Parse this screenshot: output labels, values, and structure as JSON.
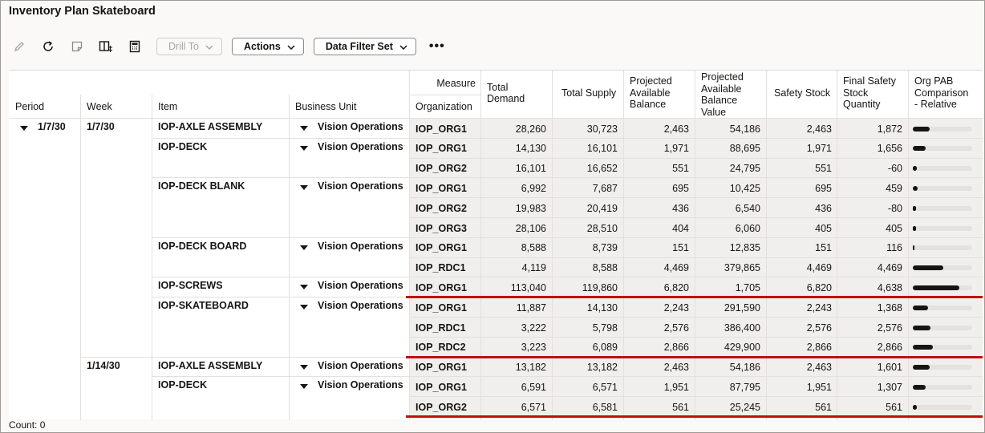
{
  "title": "Inventory Plan Skateboard",
  "toolbar": {
    "edit_icon": "pencil-icon",
    "refresh_icon": "refresh-icon",
    "note_icon": "note-icon",
    "layout_icon": "layout-icon",
    "calc_icon": "calculator-icon",
    "drill_to": "Drill To",
    "actions": "Actions",
    "data_filter_set": "Data Filter Set",
    "more": "•••"
  },
  "headers": {
    "period": "Period",
    "week": "Week",
    "item": "Item",
    "business_unit": "Business Unit",
    "measure": "Measure",
    "organization": "Organization",
    "total_demand": [
      "Total",
      "Demand"
    ],
    "total_supply": [
      "Total Supply"
    ],
    "pab": [
      "Projected",
      "Available",
      "Balance"
    ],
    "pab_value": [
      "Projected",
      "Available",
      "Balance",
      "Value"
    ],
    "safety_stock": [
      "Safety Stock"
    ],
    "final_ss": [
      "Final Safety",
      "Stock",
      "Quantity"
    ],
    "org_pab": [
      "Org PAB",
      "Comparison",
      "- Relative"
    ]
  },
  "period": "1/7/30",
  "weeks": [
    "1/7/30",
    "1/14/30"
  ],
  "items": [
    {
      "item": "IOP-AXLE ASSEMBLY",
      "bu": "Vision Operations"
    },
    {
      "item": "IOP-DECK",
      "bu": "Vision Operations"
    },
    {
      "item": "IOP-DECK BLANK",
      "bu": "Vision Operations"
    },
    {
      "item": "IOP-DECK BOARD",
      "bu": "Vision Operations"
    },
    {
      "item": "IOP-SCREWS",
      "bu": "Vision Operations"
    },
    {
      "item": "IOP-SKATEBOARD",
      "bu": "Vision Operations"
    },
    {
      "item": "IOP-AXLE ASSEMBLY",
      "bu": "Vision Operations"
    },
    {
      "item": "IOP-DECK",
      "bu": "Vision Operations"
    }
  ],
  "rows": [
    {
      "org": "IOP_ORG1",
      "td": "28,260",
      "ts": "30,723",
      "pab": "2,463",
      "pabv": "54,186",
      "ss": "2,463",
      "fss": "1,872",
      "rel": 0.28
    },
    {
      "org": "IOP_ORG1",
      "td": "14,130",
      "ts": "16,101",
      "pab": "1,971",
      "pabv": "88,695",
      "ss": "1,971",
      "fss": "1,656",
      "rel": 0.22
    },
    {
      "org": "IOP_ORG2",
      "td": "16,101",
      "ts": "16,652",
      "pab": "551",
      "pabv": "24,795",
      "ss": "551",
      "fss": "-60",
      "rel": 0.07
    },
    {
      "org": "IOP_ORG1",
      "td": "6,992",
      "ts": "7,687",
      "pab": "695",
      "pabv": "10,425",
      "ss": "695",
      "fss": "459",
      "rel": 0.08
    },
    {
      "org": "IOP_ORG2",
      "td": "19,983",
      "ts": "20,419",
      "pab": "436",
      "pabv": "6,540",
      "ss": "436",
      "fss": "-80",
      "rel": 0.06
    },
    {
      "org": "IOP_ORG3",
      "td": "28,106",
      "ts": "28,510",
      "pab": "404",
      "pabv": "6,060",
      "ss": "405",
      "fss": "405",
      "rel": 0.05
    },
    {
      "org": "IOP_ORG1",
      "td": "8,588",
      "ts": "8,739",
      "pab": "151",
      "pabv": "12,835",
      "ss": "151",
      "fss": "116",
      "rel": 0.02
    },
    {
      "org": "IOP_RDC1",
      "td": "4,119",
      "ts": "8,588",
      "pab": "4,469",
      "pabv": "379,865",
      "ss": "4,469",
      "fss": "4,469",
      "rel": 0.51
    },
    {
      "org": "IOP_ORG1",
      "td": "113,040",
      "ts": "119,860",
      "pab": "6,820",
      "pabv": "1,705",
      "ss": "6,820",
      "fss": "4,638",
      "rel": 0.79
    },
    {
      "org": "IOP_ORG1",
      "td": "11,887",
      "ts": "14,130",
      "pab": "2,243",
      "pabv": "291,590",
      "ss": "2,243",
      "fss": "1,368",
      "rel": 0.26
    },
    {
      "org": "IOP_RDC1",
      "td": "3,222",
      "ts": "5,798",
      "pab": "2,576",
      "pabv": "386,400",
      "ss": "2,576",
      "fss": "2,576",
      "rel": 0.3
    },
    {
      "org": "IOP_RDC2",
      "td": "3,223",
      "ts": "6,089",
      "pab": "2,866",
      "pabv": "429,900",
      "ss": "2,866",
      "fss": "2,866",
      "rel": 0.34
    },
    {
      "org": "IOP_ORG1",
      "td": "13,182",
      "ts": "13,182",
      "pab": "2,463",
      "pabv": "54,186",
      "ss": "2,463",
      "fss": "1,601",
      "rel": 0.28
    },
    {
      "org": "IOP_ORG1",
      "td": "6,591",
      "ts": "6,571",
      "pab": "1,951",
      "pabv": "87,795",
      "ss": "1,951",
      "fss": "1,307",
      "rel": 0.22
    },
    {
      "org": "IOP_ORG2",
      "td": "6,571",
      "ts": "6,581",
      "pab": "561",
      "pabv": "25,245",
      "ss": "561",
      "fss": "561",
      "rel": 0.07
    }
  ],
  "footer": "Count: 0",
  "colors": {
    "accent_red": "#c10f10",
    "bar": "#161513"
  }
}
